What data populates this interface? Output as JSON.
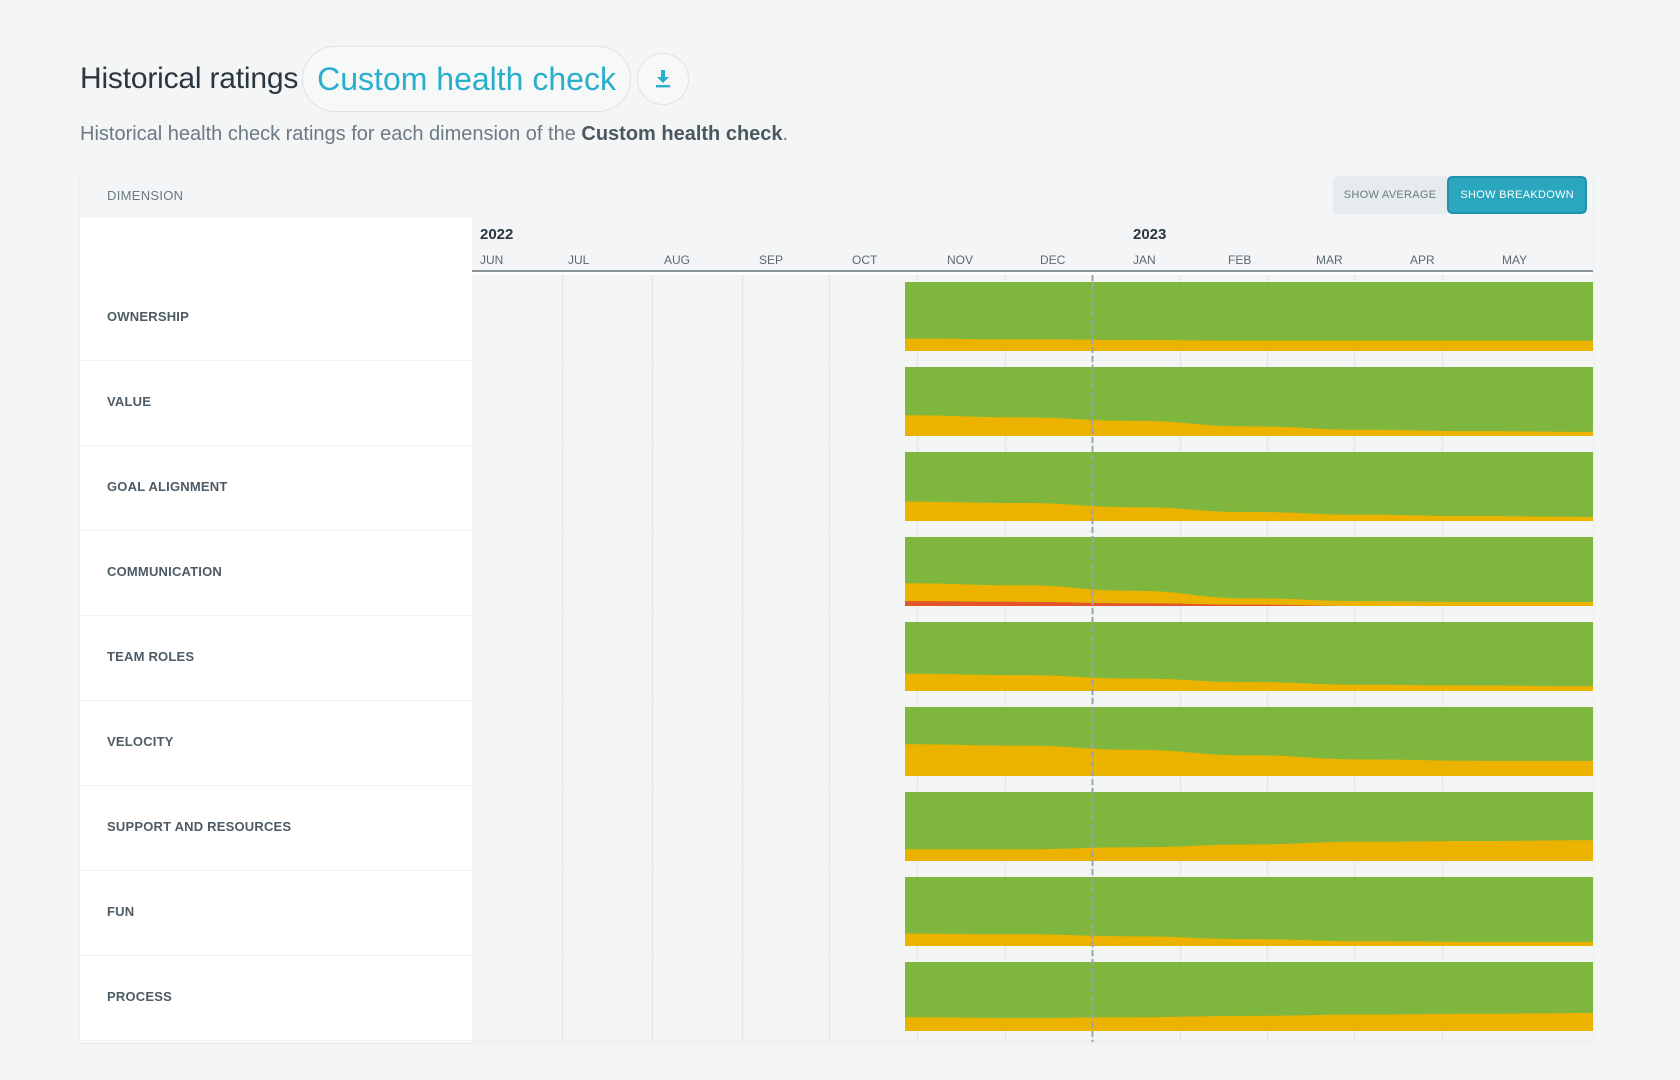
{
  "header": {
    "title": "Historical ratings",
    "health_check": "Custom health check",
    "download_icon": "download-icon"
  },
  "subtitle": {
    "prefix": "Historical health check ratings for each dimension of the ",
    "bold": "Custom health check",
    "suffix": "."
  },
  "table": {
    "dimension_header": "DIMENSION",
    "toggle": {
      "show_average": "SHOW AVERAGE",
      "show_breakdown": "SHOW BREAKDOWN",
      "selected": "SHOW BREAKDOWN"
    },
    "years": [
      "2022",
      "2023"
    ],
    "months": [
      "JUN",
      "JUL",
      "AUG",
      "SEP",
      "OCT",
      "NOV",
      "DEC",
      "JAN",
      "FEB",
      "MAR",
      "APR",
      "MAY"
    ],
    "dimensions": [
      "OWNERSHIP",
      "VALUE",
      "GOAL ALIGNMENT",
      "COMMUNICATION",
      "TEAM ROLES",
      "VELOCITY",
      "SUPPORT AND RESOURCES",
      "FUN",
      "PROCESS"
    ]
  },
  "colors": {
    "green": "#7fb63e",
    "amber": "#ebb200",
    "red": "#e4542a",
    "accent": "#2aa6bf",
    "link": "#29aecb"
  },
  "chart_data": {
    "type": "area",
    "x": [
      "Nov 2022",
      "Dec 2022",
      "Jan 2023",
      "Feb 2023",
      "Mar 2023",
      "Apr 2023",
      "May 2023"
    ],
    "series_names": [],
    "dimensions": [
      {
        "name": "OWNERSHIP",
        "red": [
          0,
          0,
          0,
          0,
          0,
          0,
          0
        ],
        "amber": [
          0.18,
          0.17,
          0.16,
          0.15,
          0.15,
          0.15,
          0.15
        ]
      },
      {
        "name": "VALUE",
        "red": [
          0,
          0,
          0,
          0,
          0,
          0,
          0
        ],
        "amber": [
          0.3,
          0.27,
          0.22,
          0.14,
          0.09,
          0.07,
          0.06
        ]
      },
      {
        "name": "GOAL ALIGNMENT",
        "red": [
          0,
          0,
          0,
          0,
          0,
          0,
          0
        ],
        "amber": [
          0.28,
          0.26,
          0.2,
          0.13,
          0.09,
          0.07,
          0.06
        ]
      },
      {
        "name": "COMMUNICATION",
        "red": [
          0.07,
          0.06,
          0.04,
          0.02,
          0,
          0,
          0
        ],
        "amber": [
          0.26,
          0.24,
          0.18,
          0.09,
          0.07,
          0.06,
          0.06
        ]
      },
      {
        "name": "TEAM ROLES",
        "red": [
          0,
          0,
          0,
          0,
          0,
          0,
          0
        ],
        "amber": [
          0.25,
          0.23,
          0.18,
          0.13,
          0.09,
          0.08,
          0.07
        ]
      },
      {
        "name": "VELOCITY",
        "red": [
          0,
          0,
          0,
          0,
          0,
          0,
          0
        ],
        "amber": [
          0.46,
          0.44,
          0.38,
          0.3,
          0.24,
          0.22,
          0.22
        ]
      },
      {
        "name": "SUPPORT AND RESOURCES",
        "red": [
          0,
          0,
          0,
          0,
          0,
          0,
          0
        ],
        "amber": [
          0.17,
          0.17,
          0.2,
          0.24,
          0.28,
          0.29,
          0.3
        ]
      },
      {
        "name": "FUN",
        "red": [
          0,
          0,
          0,
          0,
          0,
          0,
          0
        ],
        "amber": [
          0.18,
          0.17,
          0.14,
          0.1,
          0.07,
          0.06,
          0.06
        ]
      },
      {
        "name": "PROCESS",
        "red": [
          0,
          0,
          0,
          0,
          0,
          0,
          0
        ],
        "amber": [
          0.2,
          0.19,
          0.2,
          0.22,
          0.24,
          0.25,
          0.26
        ]
      }
    ]
  }
}
